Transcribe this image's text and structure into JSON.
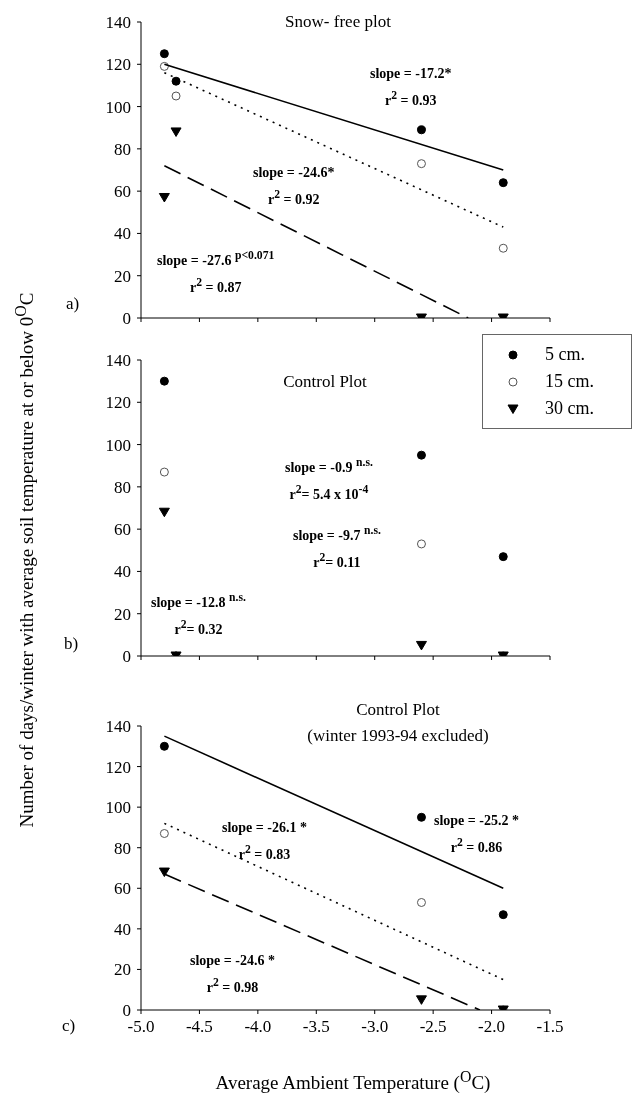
{
  "chart_data": [
    {
      "type": "scatter",
      "title": "Snow- free plot",
      "x": [
        -4.8,
        -4.7,
        -2.6,
        -1.9
      ],
      "xlim": [
        -5,
        -1.5
      ],
      "xticks": [
        -5,
        -4.5,
        -4,
        -3.5,
        -3,
        -2.5,
        -2,
        -1.5
      ],
      "ylim": [
        0,
        140
      ],
      "yticks": [
        0,
        20,
        40,
        60,
        80,
        100,
        120,
        140
      ],
      "tick_labels": "y",
      "grid": false,
      "series": [
        {
          "color": "#000000",
          "marker": "circle",
          "values": [
            125,
            112,
            89,
            64
          ]
        },
        {
          "color": "#ffffff",
          "marker": "circle",
          "values": [
            119,
            105,
            73,
            33
          ]
        },
        {
          "color": "#000000",
          "marker": "triangle",
          "values": [
            57,
            88,
            0,
            0
          ]
        },
        {
          "type": "line",
          "color": "#000000",
          "marker": "none",
          "line_style": "solid",
          "x": [
            -4.8,
            -1.9
          ],
          "values": [
            120,
            70
          ]
        },
        {
          "type": "line",
          "color": "#000000",
          "marker": "none",
          "line_style": "dotted",
          "x": [
            -4.8,
            -1.9
          ],
          "values": [
            116,
            43
          ]
        },
        {
          "type": "line",
          "color": "#000000",
          "marker": "none",
          "line_style": "dashed",
          "x": [
            -4.8,
            -2.2
          ],
          "values": [
            72,
            0
          ]
        }
      ],
      "annotations": [
        "slope = -17.2*\nr$^{2}$ = 0.93",
        "slope = -24.6*\nr$^{2}$ = 0.92",
        "slope = -27.6 $^{p<0.071}$\nr$^{2}$ = 0.87",
        "a)"
      ]
    },
    {
      "type": "scatter",
      "title": "Control Plot",
      "ylabel": "Number of days/winter with average soil temperature at or below 0$^{O}$C",
      "x": [
        -4.8,
        -4.7,
        -2.6,
        -1.9
      ],
      "xlim": [
        -5,
        -1.5
      ],
      "xticks": [
        -5,
        -4.5,
        -4,
        -3.5,
        -3,
        -2.5,
        -2,
        -1.5
      ],
      "ylim": [
        0,
        140
      ],
      "yticks": [
        0,
        20,
        40,
        60,
        80,
        100,
        120,
        140
      ],
      "tick_labels": "y",
      "grid": false,
      "legend": "top right",
      "series": [
        {
          "name": "5 cm.",
          "color": "#000000",
          "marker": "circle",
          "values": [
            130,
            0,
            95,
            47
          ]
        },
        {
          "name": "15 cm.",
          "color": "#ffffff",
          "marker": "circle",
          "values": [
            87,
            0,
            53,
            0
          ]
        },
        {
          "name": "30 cm.",
          "color": "#000000",
          "marker": "triangle",
          "values": [
            68,
            0,
            5,
            0
          ]
        }
      ],
      "annotations": [
        "slope = -0.9 $^{n.s.}$\nr$^{2}$= 5.4 x 10$^{-4}$",
        "slope = -9.7 $^{n.s.}$\nr$^{2}$= 0.11",
        "slope = -12.8 $^{n.s.}$\nr$^{2}$= 0.32",
        "b)"
      ]
    },
    {
      "type": "scatter",
      "title": "Control Plot",
      "subtitle": "(winter 1993-94 excluded)",
      "xlabel": "Average Ambient Temperature ($^{O}$C)",
      "x": [
        -4.8,
        -2.6,
        -1.9
      ],
      "xlim": [
        -5,
        -1.5
      ],
      "xticks": [
        {
          "value": -5,
          "label": "-5.0"
        },
        {
          "value": -4.5,
          "label": "-4.5"
        },
        {
          "value": -4,
          "label": "-4.0"
        },
        {
          "value": -3.5,
          "label": "-3.5"
        },
        {
          "value": -3,
          "label": "-3.0"
        },
        {
          "value": -2.5,
          "label": "-2.5"
        },
        {
          "value": -2,
          "label": "-2.0"
        },
        {
          "value": -1.5,
          "label": "-1.5"
        }
      ],
      "ylim": [
        0,
        140
      ],
      "yticks": [
        0,
        20,
        40,
        60,
        80,
        100,
        120,
        140
      ],
      "grid": false,
      "series": [
        {
          "color": "#000000",
          "marker": "circle",
          "values": [
            130,
            95,
            47
          ]
        },
        {
          "color": "#ffffff",
          "marker": "circle",
          "values": [
            87,
            53,
            0
          ]
        },
        {
          "color": "#000000",
          "marker": "triangle",
          "values": [
            68,
            5,
            0
          ]
        },
        {
          "type": "line",
          "color": "#000000",
          "marker": "none",
          "line_style": "solid",
          "x": [
            -4.8,
            -1.9
          ],
          "values": [
            135,
            60
          ]
        },
        {
          "type": "line",
          "color": "#000000",
          "marker": "none",
          "line_style": "dotted",
          "x": [
            -4.8,
            -1.9
          ],
          "values": [
            92,
            15
          ]
        },
        {
          "type": "line",
          "color": "#000000",
          "marker": "none",
          "line_style": "dashed",
          "x": [
            -4.8,
            -2.1
          ],
          "values": [
            67,
            0
          ]
        }
      ],
      "annotations": [
        "slope = -26.1 *\nr$^{2}$ = 0.83",
        "slope = -25.2 *\nr$^{2}$ = 0.86",
        "slope = -24.6 *\nr$^{2}$ = 0.98",
        "c)"
      ]
    }
  ]
}
